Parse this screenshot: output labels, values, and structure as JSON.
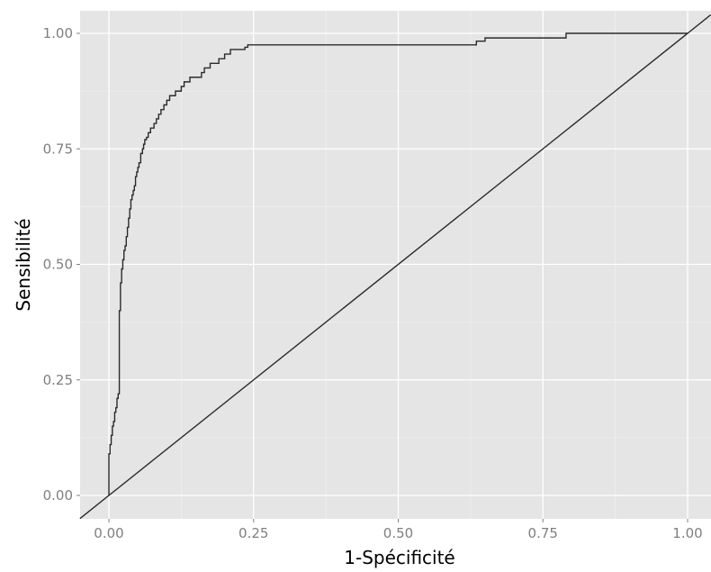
{
  "chart_data": {
    "type": "line",
    "title": "",
    "xlabel": "1-Spécificité",
    "ylabel": "Sensibilité",
    "xlim": [
      -0.05,
      1.04
    ],
    "ylim": [
      -0.05,
      1.04
    ],
    "x_ticks": [
      0,
      0.25,
      0.5,
      0.75,
      1
    ],
    "x_tick_labels": [
      "0.00",
      "0.25",
      "0.50",
      "0.75",
      "1.00"
    ],
    "y_ticks": [
      0,
      0.25,
      0.5,
      0.75,
      1
    ],
    "y_tick_labels": [
      "0.00",
      "0.25",
      "0.50",
      "0.75",
      "1.00"
    ],
    "grid": true,
    "legend": "none",
    "colors": {
      "panel": "#e5e5e5",
      "grid_major": "#ffffff",
      "grid_minor": "#f2f2f2",
      "line": "#2b2b2b"
    },
    "series": [
      {
        "kind": "step",
        "x": [
          0,
          0,
          0.002,
          0.004,
          0.006,
          0.008,
          0.01,
          0.012,
          0.014,
          0.016,
          0.018,
          0.02,
          0.02,
          0.022,
          0.024,
          0.026,
          0.028,
          0.03,
          0.032,
          0.034,
          0.036,
          0.038,
          0.04,
          0.042,
          0.044,
          0.046,
          0.048,
          0.05,
          0.052,
          0.055,
          0.058,
          0.06,
          0.062,
          0.065,
          0.068,
          0.072,
          0.078,
          0.082,
          0.086,
          0.09,
          0.095,
          0.1,
          0.105,
          0.115,
          0.125,
          0.13,
          0.14,
          0.16,
          0.165,
          0.175,
          0.19,
          0.2,
          0.21,
          0.235,
          0.24,
          0.245,
          0.25,
          0.635,
          0.65,
          0.79,
          1
        ],
        "y": [
          0,
          0.09,
          0.11,
          0.13,
          0.15,
          0.16,
          0.18,
          0.19,
          0.21,
          0.22,
          0.4,
          0.43,
          0.46,
          0.49,
          0.51,
          0.53,
          0.54,
          0.56,
          0.58,
          0.6,
          0.62,
          0.64,
          0.65,
          0.66,
          0.67,
          0.69,
          0.7,
          0.71,
          0.72,
          0.74,
          0.75,
          0.76,
          0.77,
          0.775,
          0.785,
          0.795,
          0.805,
          0.815,
          0.825,
          0.835,
          0.845,
          0.855,
          0.865,
          0.875,
          0.885,
          0.895,
          0.905,
          0.915,
          0.925,
          0.935,
          0.945,
          0.955,
          0.965,
          0.97,
          0.975,
          0.975,
          0.975,
          0.983,
          0.99,
          1,
          1
        ]
      },
      {
        "kind": "abline",
        "intercept": 0,
        "slope": 1
      }
    ]
  }
}
